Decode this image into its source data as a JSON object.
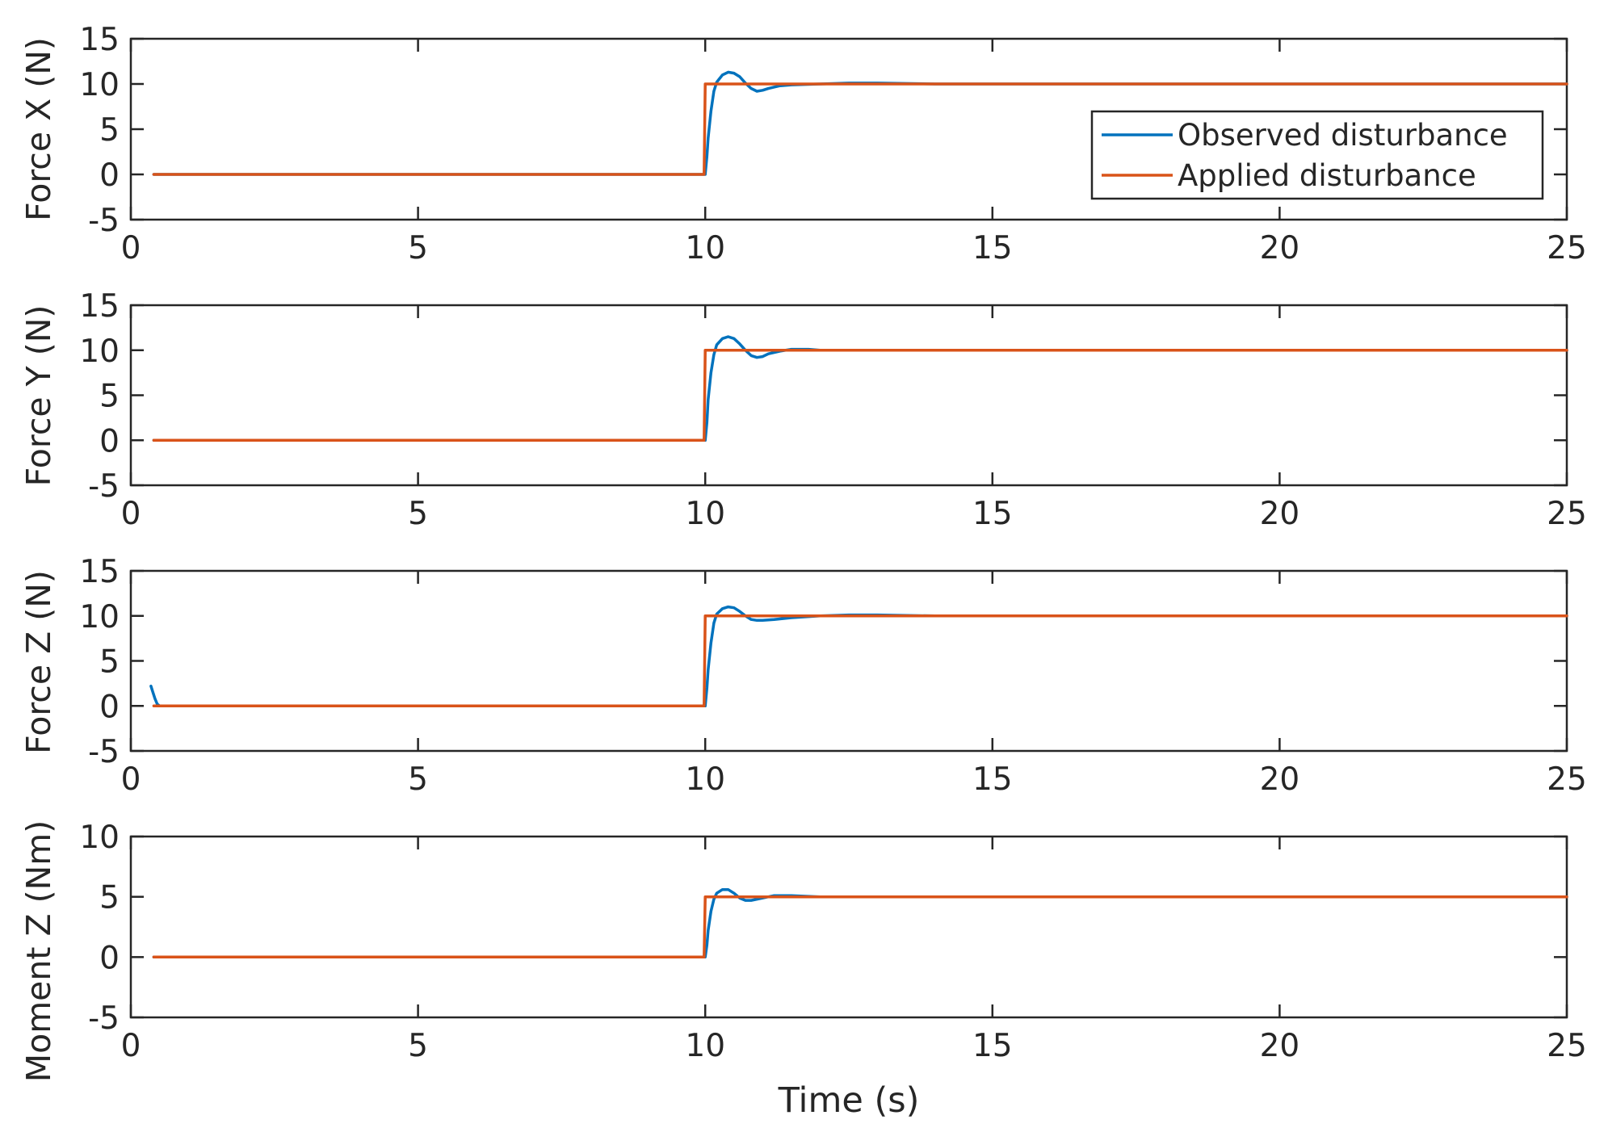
{
  "chart_data": [
    {
      "type": "line",
      "ylabel": "Force X (N)",
      "xlim": [
        0,
        25
      ],
      "ylim": [
        -5,
        15
      ],
      "x_ticks": [
        0,
        5,
        10,
        15,
        20,
        25
      ],
      "y_ticks": [
        -5,
        0,
        5,
        10,
        15
      ],
      "legend": {
        "placement": "right",
        "entries": [
          "Observed disturbance",
          "Applied disturbance"
        ]
      },
      "series": [
        {
          "name": "Observed disturbance",
          "color": "#0072BD",
          "x": [
            0.4,
            9.98,
            10.0,
            10.03,
            10.05,
            10.1,
            10.15,
            10.2,
            10.3,
            10.4,
            10.5,
            10.6,
            10.7,
            10.8,
            10.9,
            11.0,
            11.1,
            11.3,
            11.5,
            12.0,
            12.5,
            13.0,
            14.0,
            25.0
          ],
          "y": [
            0,
            0,
            0,
            2.0,
            4.0,
            7.0,
            9.2,
            10.2,
            11.0,
            11.3,
            11.2,
            10.8,
            10.1,
            9.5,
            9.2,
            9.3,
            9.5,
            9.8,
            9.9,
            10.0,
            10.1,
            10.1,
            10.0,
            10.0
          ]
        },
        {
          "name": "Applied disturbance",
          "color": "#D95319",
          "x": [
            0.4,
            9.98,
            10.0,
            25.0
          ],
          "y": [
            0,
            0,
            10,
            10
          ]
        }
      ]
    },
    {
      "type": "line",
      "ylabel": "Force Y (N)",
      "xlim": [
        0,
        25
      ],
      "ylim": [
        -5,
        15
      ],
      "x_ticks": [
        0,
        5,
        10,
        15,
        20,
        25
      ],
      "y_ticks": [
        -5,
        0,
        5,
        10,
        15
      ],
      "series": [
        {
          "name": "Observed disturbance",
          "color": "#0072BD",
          "x": [
            0.4,
            9.98,
            10.0,
            10.03,
            10.05,
            10.1,
            10.15,
            10.2,
            10.3,
            10.4,
            10.5,
            10.6,
            10.7,
            10.8,
            10.9,
            11.0,
            11.1,
            11.3,
            11.5,
            11.8,
            12.0,
            13.0,
            25.0
          ],
          "y": [
            0,
            0,
            0,
            2.0,
            4.5,
            7.5,
            9.5,
            10.6,
            11.3,
            11.5,
            11.3,
            10.7,
            10.0,
            9.4,
            9.2,
            9.3,
            9.6,
            9.9,
            10.1,
            10.1,
            10.0,
            10.0,
            10.0
          ]
        },
        {
          "name": "Applied disturbance",
          "color": "#D95319",
          "x": [
            0.4,
            9.98,
            10.0,
            25.0
          ],
          "y": [
            0,
            0,
            10,
            10
          ]
        }
      ]
    },
    {
      "type": "line",
      "ylabel": "Force Z (N)",
      "xlim": [
        0,
        25
      ],
      "ylim": [
        -5,
        15
      ],
      "x_ticks": [
        0,
        5,
        10,
        15,
        20,
        25
      ],
      "y_ticks": [
        -5,
        0,
        5,
        10,
        15
      ],
      "series": [
        {
          "name": "Observed disturbance",
          "color": "#0072BD",
          "x": [
            0.35,
            0.38,
            0.42,
            0.46,
            0.5,
            0.55,
            1.0,
            9.98,
            10.0,
            10.03,
            10.05,
            10.1,
            10.15,
            10.2,
            10.3,
            10.4,
            10.5,
            10.6,
            10.7,
            10.8,
            10.9,
            11.0,
            11.2,
            11.5,
            12.0,
            12.5,
            13.0,
            14.0,
            25.0
          ],
          "y": [
            2.2,
            1.6,
            0.8,
            0.2,
            0.0,
            0.0,
            0.0,
            0.0,
            0.0,
            2.0,
            4.0,
            7.0,
            9.2,
            10.2,
            10.8,
            11.0,
            10.9,
            10.5,
            10.0,
            9.6,
            9.5,
            9.5,
            9.6,
            9.8,
            10.0,
            10.1,
            10.1,
            10.0,
            10.0
          ]
        },
        {
          "name": "Applied disturbance",
          "color": "#D95319",
          "x": [
            0.4,
            9.98,
            10.0,
            25.0
          ],
          "y": [
            0,
            0,
            10,
            10
          ]
        }
      ]
    },
    {
      "type": "line",
      "ylabel": "Moment Z (Nm)",
      "xlabel": "Time (s)",
      "xlim": [
        0,
        25
      ],
      "ylim": [
        -5,
        10
      ],
      "x_ticks": [
        0,
        5,
        10,
        15,
        20,
        25
      ],
      "y_ticks": [
        -5,
        0,
        5,
        10
      ],
      "series": [
        {
          "name": "Observed disturbance",
          "color": "#0072BD",
          "x": [
            0.4,
            9.98,
            10.0,
            10.03,
            10.05,
            10.1,
            10.15,
            10.2,
            10.3,
            10.4,
            10.5,
            10.6,
            10.7,
            10.8,
            10.9,
            11.0,
            11.2,
            11.5,
            12.0,
            25.0
          ],
          "y": [
            0,
            0,
            0,
            1.0,
            2.2,
            3.8,
            4.8,
            5.3,
            5.6,
            5.6,
            5.3,
            4.9,
            4.7,
            4.7,
            4.8,
            4.9,
            5.1,
            5.1,
            5.0,
            5.0
          ]
        },
        {
          "name": "Applied disturbance",
          "color": "#D95319",
          "x": [
            0.4,
            9.98,
            10.0,
            25.0
          ],
          "y": [
            0,
            0,
            5,
            5
          ]
        }
      ]
    }
  ]
}
